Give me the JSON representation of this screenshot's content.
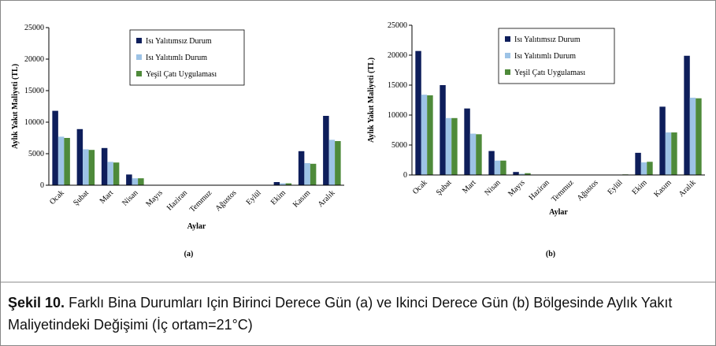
{
  "chart_data": [
    {
      "type": "bar",
      "label": "(a)",
      "y_label": "Aylık Yakıt Maliyeti (TL)",
      "x_label": "Aylar",
      "categories": [
        "Ocak",
        "Şubat",
        "Mart",
        "Nisan",
        "Mayıs",
        "Haziran",
        "Temmuz",
        "Ağustos",
        "Eylül",
        "Ekim",
        "Kasım",
        "Aralık"
      ],
      "series": [
        {
          "name": "Isı Yalıtımsız Durum",
          "color": "#0e1e5b",
          "values": [
            11800,
            8900,
            5900,
            1700,
            0,
            0,
            0,
            0,
            0,
            500,
            5400,
            11000
          ]
        },
        {
          "name": "Isı Yalıtımlı Durum",
          "color": "#9dc3e6",
          "values": [
            7700,
            5700,
            3700,
            1100,
            0,
            0,
            0,
            0,
            0,
            300,
            3500,
            7200
          ]
        },
        {
          "name": "Yeşil Çatı Uygulaması",
          "color": "#4e8a3a",
          "values": [
            7500,
            5600,
            3600,
            1100,
            0,
            0,
            0,
            0,
            0,
            300,
            3400,
            7000
          ]
        }
      ],
      "ylim": [
        0,
        25000
      ],
      "yticks": [
        0,
        5000,
        10000,
        15000,
        20000,
        25000
      ]
    },
    {
      "type": "bar",
      "label": "(b)",
      "y_label": "Aylık Yakıt Maliyeti (TL)",
      "x_label": "Aylar",
      "categories": [
        "Ocak",
        "Şubat",
        "Mart",
        "Nisan",
        "Mayıs",
        "Haziran",
        "Temmuz",
        "Ağustos",
        "Eylül",
        "Ekim",
        "Kasım",
        "Aralık"
      ],
      "series": [
        {
          "name": "Isı Yalıtımsız Durum",
          "color": "#0e1e5b",
          "values": [
            20700,
            15000,
            11100,
            4000,
            500,
            0,
            0,
            0,
            0,
            3700,
            11400,
            19900
          ]
        },
        {
          "name": "Isı Yalıtımlı Durum",
          "color": "#9dc3e6",
          "values": [
            13400,
            9500,
            6900,
            2400,
            200,
            0,
            0,
            0,
            0,
            2100,
            7100,
            12900
          ]
        },
        {
          "name": "Yeşil Çatı Uygulaması",
          "color": "#4e8a3a",
          "values": [
            13300,
            9500,
            6800,
            2400,
            300,
            0,
            0,
            0,
            100,
            2200,
            7100,
            12800
          ]
        }
      ],
      "ylim": [
        0,
        25000
      ],
      "yticks": [
        0,
        5000,
        10000,
        15000,
        20000,
        25000
      ]
    }
  ],
  "caption": {
    "label": "Şekil 10.",
    "text": "Farklı Bina Durumları Için Birinci Derece Gün (a) ve Ikinci Derece Gün (b) Bölgesinde Aylık Yakıt Maliyetindeki Değişimi (İç ortam=21°C)"
  }
}
